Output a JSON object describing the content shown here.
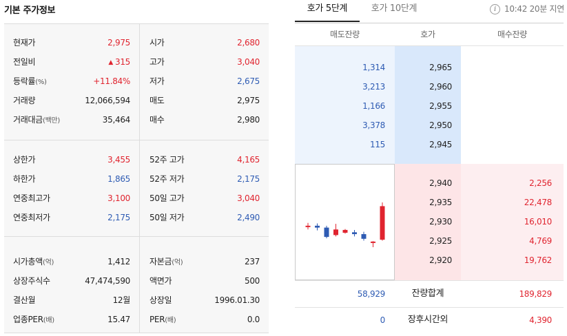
{
  "left": {
    "title": "기본 주가정보",
    "sec1": [
      {
        "lk": "현재가",
        "lku": "",
        "lv": "2,975",
        "lc": "red",
        "rk": "시가",
        "rv": "2,680",
        "rc": "red"
      },
      {
        "lk": "전일비",
        "lku": "",
        "lv": "315",
        "lc": "red",
        "rk": "고가",
        "rv": "3,040",
        "rc": "red"
      },
      {
        "lk": "등락률",
        "lku": "(%)",
        "lv": "+11.84%",
        "lc": "red",
        "rk": "저가",
        "rv": "2,675",
        "rc": "blue"
      },
      {
        "lk": "거래량",
        "lku": "",
        "lv": "12,066,594",
        "lc": "dark",
        "rk": "매도",
        "rv": "2,975",
        "rc": "dark"
      },
      {
        "lk": "거래대금",
        "lku": "(백만)",
        "lv": "35,464",
        "lc": "dark",
        "rk": "매수",
        "rv": "2,980",
        "rc": "dark"
      }
    ],
    "change_arrow": "▲",
    "sec2": [
      {
        "lk": "상한가",
        "lku": "",
        "lv": "3,455",
        "lc": "red",
        "rk": "52주 고가",
        "rv": "4,165",
        "rc": "red"
      },
      {
        "lk": "하한가",
        "lku": "",
        "lv": "1,865",
        "lc": "blue",
        "rk": "52주 저가",
        "rv": "2,175",
        "rc": "blue"
      },
      {
        "lk": "연중최고가",
        "lku": "",
        "lv": "3,100",
        "lc": "red",
        "rk": "50일 고가",
        "rv": "3,040",
        "rc": "red"
      },
      {
        "lk": "연중최저가",
        "lku": "",
        "lv": "2,175",
        "lc": "blue",
        "rk": "50일 저가",
        "rv": "2,490",
        "rc": "blue"
      }
    ],
    "sec3": [
      {
        "lk": "시가총액",
        "lku": "(억)",
        "lv": "1,412",
        "lc": "dark",
        "rk": "자본금",
        "rku": "(억)",
        "rv": "237",
        "rc": "dark"
      },
      {
        "lk": "상장주식수",
        "lku": "",
        "lv": "47,474,590",
        "lc": "dark",
        "rk": "액면가",
        "rku": "",
        "rv": "500",
        "rc": "dark"
      },
      {
        "lk": "결산월",
        "lku": "",
        "lv": "12월",
        "lc": "dark",
        "rk": "상장일",
        "rku": "",
        "rv": "1996.01.30",
        "rc": "dark"
      },
      {
        "lk": "업종PER",
        "lku": "(배)",
        "lv": "15.47",
        "lc": "dark",
        "rk": "PER",
        "rku": "(배)",
        "rv": "0.0",
        "rc": "dark"
      }
    ]
  },
  "right": {
    "tabs": [
      "호가 5단계",
      "호가 10단계"
    ],
    "delay_text": "10:42 20분 지연",
    "info_icon": "i",
    "headers": {
      "ask": "매도잔량",
      "price": "호가",
      "bid": "매수잔량"
    },
    "asks": [
      {
        "qty": "1,314",
        "price": "2,965"
      },
      {
        "qty": "3,213",
        "price": "2,960"
      },
      {
        "qty": "1,166",
        "price": "2,955"
      },
      {
        "qty": "3,378",
        "price": "2,950"
      },
      {
        "qty": "115",
        "price": "2,945"
      }
    ],
    "bids": [
      {
        "price": "2,940",
        "qty": "2,256"
      },
      {
        "price": "2,935",
        "qty": "22,478"
      },
      {
        "price": "2,930",
        "qty": "16,010"
      },
      {
        "price": "2,925",
        "qty": "4,769"
      },
      {
        "price": "2,920",
        "qty": "19,762"
      }
    ],
    "totals": {
      "label": "잔량합계",
      "ask": "58,929",
      "bid": "189,829"
    },
    "after_hours": {
      "label": "장후시간외",
      "ask": "0",
      "bid": "4,390"
    }
  },
  "mini_chart": {
    "type": "candlestick",
    "colors": {
      "up": "#e0242f",
      "down": "#2e5bb3"
    },
    "candles": [
      {
        "open": 2600,
        "high": 2640,
        "low": 2570,
        "close": 2610
      },
      {
        "open": 2610,
        "high": 2635,
        "low": 2560,
        "close": 2590
      },
      {
        "open": 2590,
        "high": 2610,
        "low": 2475,
        "close": 2490
      },
      {
        "open": 2510,
        "high": 2630,
        "low": 2495,
        "close": 2570
      },
      {
        "open": 2535,
        "high": 2575,
        "low": 2525,
        "close": 2565
      },
      {
        "open": 2540,
        "high": 2565,
        "low": 2495,
        "close": 2520
      },
      {
        "open": 2520,
        "high": 2545,
        "low": 2450,
        "close": 2470
      },
      {
        "open": 2440,
        "high": 2445,
        "low": 2380,
        "close": 2440
      },
      {
        "open": 2460,
        "high": 2860,
        "low": 2450,
        "close": 2820
      }
    ]
  }
}
